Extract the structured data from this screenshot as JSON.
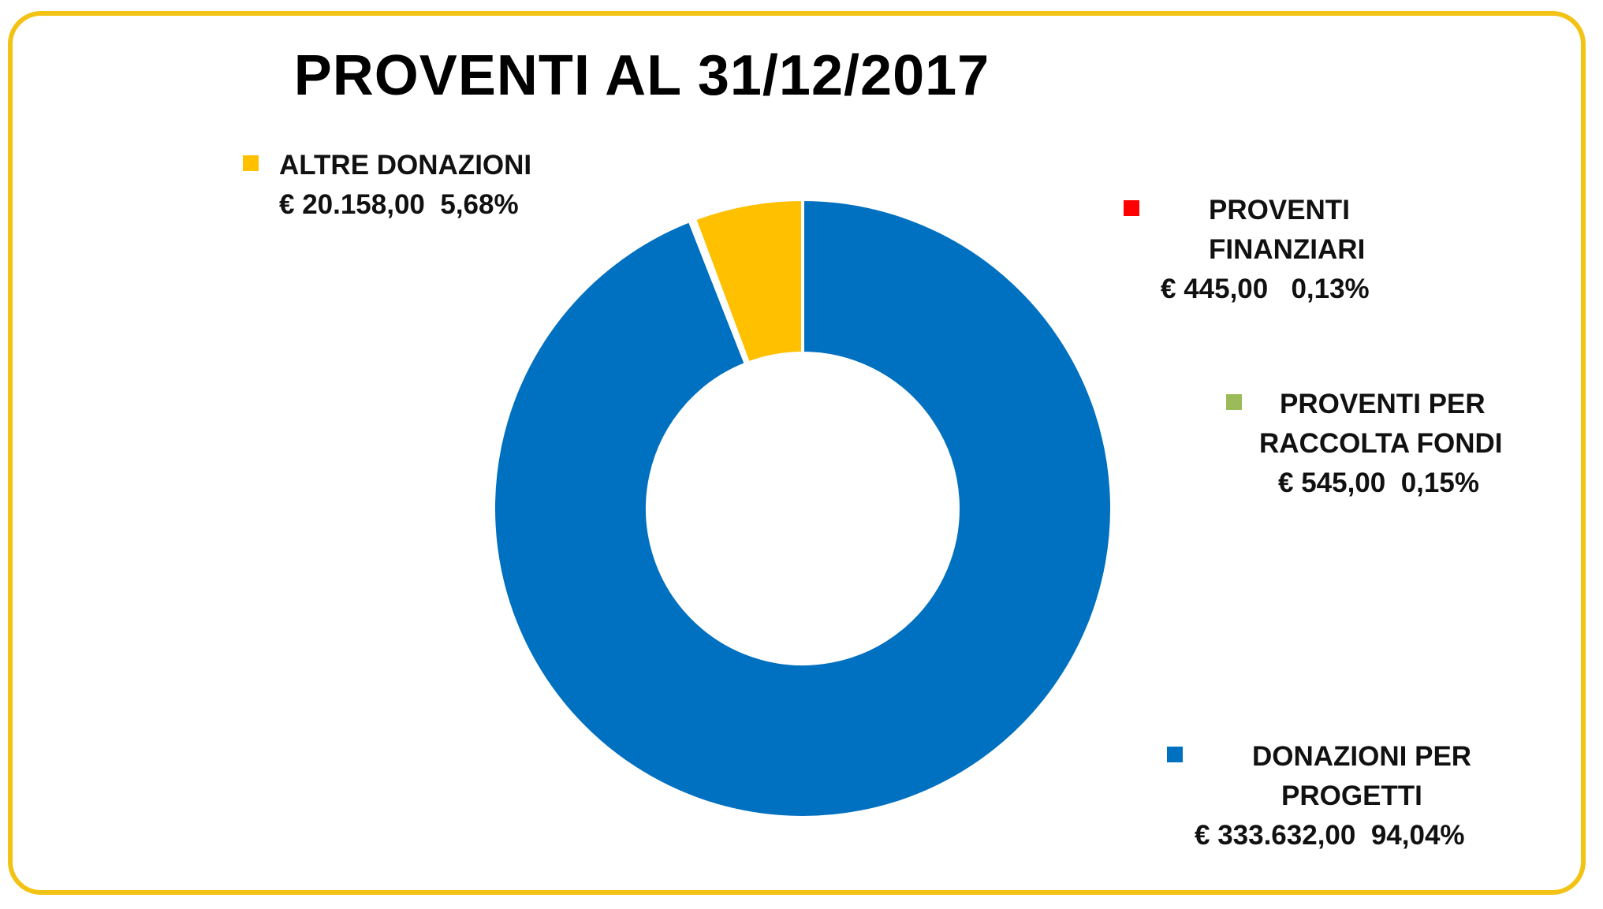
{
  "chart_data": {
    "type": "pie",
    "style": "donut",
    "title": "PROVENTI AL 31/12/2017",
    "slices": [
      {
        "key": "donazioni",
        "name_lines": [
          "DONAZIONI PER",
          "PROGETTI"
        ],
        "amount": "€ 333.632,00",
        "percent_label": "94,04%",
        "value": 94.04,
        "color": "#0070c0"
      },
      {
        "key": "altre",
        "name_lines": [
          "ALTRE DONAZIONI"
        ],
        "amount": "€ 20.158,00",
        "percent_label": "5,68%",
        "value": 5.68,
        "color": "#ffc000"
      },
      {
        "key": "finanziari",
        "name_lines": [
          "PROVENTI",
          "FINANZIARI"
        ],
        "amount": "€ 445,00",
        "percent_label": "0,13%",
        "value": 0.13,
        "color": "#ff0000"
      },
      {
        "key": "raccolta",
        "name_lines": [
          "PROVENTI PER",
          "RACCOLTA FONDI"
        ],
        "amount": "€ 545,00",
        "percent_label": "0,15%",
        "value": 0.15,
        "color": "#9bbb59"
      }
    ],
    "legend_position": "around"
  }
}
